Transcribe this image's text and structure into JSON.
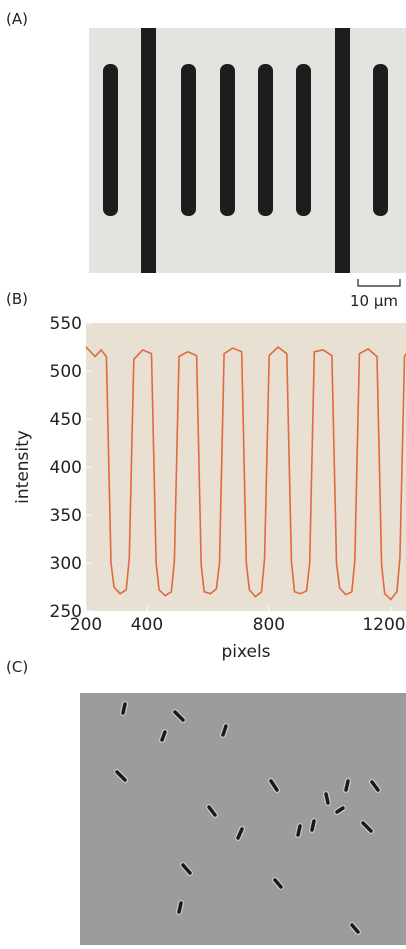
{
  "figure": {
    "panel_labels": [
      "(A)",
      "(B)",
      "(C)"
    ],
    "scale_bar": "10 μm"
  },
  "chart_data": {
    "type": "line",
    "xlabel": "pixels",
    "ylabel": "intensity",
    "x": [
      200,
      230,
      250,
      267,
      282,
      292,
      312,
      332,
      342,
      357,
      386,
      415,
      430,
      440,
      460,
      480,
      490,
      505,
      534,
      563,
      578,
      588,
      608,
      628,
      638,
      653,
      682,
      711,
      726,
      736,
      756,
      776,
      786,
      801,
      830,
      859,
      874,
      884,
      904,
      924,
      934,
      949,
      978,
      1007,
      1022,
      1032,
      1052,
      1072,
      1082,
      1097,
      1126,
      1155,
      1170,
      1180,
      1200,
      1220,
      1230,
      1245,
      1250
    ],
    "series": [
      {
        "color": "#e0693e",
        "values": [
          525,
          515,
          522,
          515,
          300,
          275,
          268,
          272,
          305,
          512,
          522,
          518,
          300,
          272,
          266,
          270,
          302,
          515,
          520,
          516,
          298,
          270,
          268,
          273,
          300,
          518,
          524,
          520,
          300,
          272,
          265,
          270,
          305,
          516,
          525,
          518,
          302,
          270,
          268,
          271,
          300,
          520,
          522,
          516,
          300,
          274,
          267,
          270,
          302,
          518,
          523,
          515,
          298,
          268,
          262,
          270,
          305,
          515,
          518
        ]
      }
    ],
    "xlim": [
      200,
      1250
    ],
    "ylim": [
      250,
      550
    ],
    "xticks": [
      200,
      400,
      800,
      1200
    ],
    "yticks": [
      250,
      300,
      350,
      400,
      450,
      500,
      550
    ],
    "background": "#e7e0d3"
  }
}
